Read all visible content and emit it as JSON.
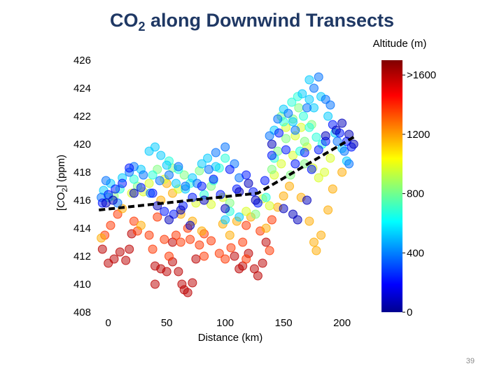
{
  "slide": {
    "title_main": "CO",
    "title_sub": "2",
    "title_rest": " along Downwind Transects",
    "page_number": "39"
  },
  "chart_data": {
    "type": "scatter",
    "title": "CO2 along Downwind Transects",
    "xlabel": "Distance (km)",
    "ylabel_parts": [
      "[CO",
      "2",
      "] (ppm)"
    ],
    "xlim": [
      -10,
      220
    ],
    "ylim": [
      408,
      426
    ],
    "xticks": [
      0,
      50,
      100,
      150,
      200
    ],
    "yticks": [
      408,
      410,
      412,
      414,
      416,
      418,
      420,
      422,
      424,
      426
    ],
    "colorbar": {
      "title": "Altitude (m)",
      "range": [
        0,
        1700
      ],
      "ticks": [
        {
          "value": 0,
          "label": "0"
        },
        {
          "value": 400,
          "label": "400"
        },
        {
          "value": 800,
          "label": "800"
        },
        {
          "value": 1200,
          "label": "1200"
        },
        {
          "value": 1600,
          "label": ">1600"
        }
      ],
      "colormap": "jet"
    },
    "trend_line": {
      "style": "dashed",
      "color": "#000000",
      "points": [
        [
          -8,
          415.3
        ],
        [
          128,
          416.5
        ],
        [
          212,
          420.6
        ]
      ]
    },
    "series": [
      {
        "name": "alt_low_1600",
        "altitude": 1600,
        "points": [
          [
            -5,
            412.5
          ],
          [
            0,
            411.5
          ],
          [
            5,
            411.8
          ],
          [
            10,
            412.3
          ],
          [
            15,
            411.7
          ],
          [
            18,
            412.5
          ],
          [
            20,
            413.6
          ],
          [
            40,
            411.3
          ],
          [
            45,
            411.1
          ],
          [
            50,
            410.9
          ],
          [
            55,
            411.6
          ],
          [
            60,
            410.9
          ],
          [
            63,
            410.0
          ],
          [
            65,
            409.6
          ],
          [
            68,
            409.4
          ],
          [
            72,
            410.1
          ],
          [
            75,
            411.8
          ],
          [
            108,
            412.0
          ],
          [
            112,
            411.1
          ],
          [
            115,
            411.3
          ],
          [
            120,
            412.2
          ],
          [
            125,
            411.1
          ],
          [
            128,
            410.6
          ],
          [
            132,
            411.5
          ],
          [
            135,
            413.0
          ],
          [
            55,
            413.0
          ],
          [
            40,
            410.0
          ]
        ]
      },
      {
        "name": "alt_1400",
        "altitude": 1400,
        "points": [
          [
            -3,
            413.5
          ],
          [
            2,
            414.2
          ],
          [
            8,
            415.0
          ],
          [
            22,
            414.5
          ],
          [
            25,
            413.8
          ],
          [
            35,
            413.5
          ],
          [
            38,
            412.5
          ],
          [
            42,
            414.8
          ],
          [
            48,
            413.2
          ],
          [
            52,
            412.0
          ],
          [
            58,
            413.5
          ],
          [
            62,
            413.0
          ],
          [
            68,
            414.0
          ],
          [
            70,
            413.2
          ],
          [
            78,
            412.8
          ],
          [
            82,
            412.0
          ],
          [
            88,
            413.1
          ],
          [
            95,
            412.2
          ],
          [
            100,
            411.8
          ],
          [
            105,
            412.6
          ],
          [
            115,
            413.0
          ],
          [
            118,
            414.2
          ],
          [
            130,
            413.8
          ],
          [
            138,
            412.4
          ],
          [
            140,
            414.6
          ],
          [
            82,
            413.6
          ],
          [
            118,
            411.8
          ]
        ]
      },
      {
        "name": "alt_1200",
        "altitude": 1200,
        "points": [
          [
            -6,
            413.3
          ],
          [
            12,
            415.4
          ],
          [
            28,
            414.2
          ],
          [
            45,
            416.0
          ],
          [
            50,
            417.2
          ],
          [
            55,
            416.5
          ],
          [
            62,
            415.0
          ],
          [
            72,
            414.5
          ],
          [
            80,
            413.8
          ],
          [
            98,
            414.3
          ],
          [
            104,
            413.5
          ],
          [
            110,
            414.5
          ],
          [
            122,
            414.8
          ],
          [
            135,
            414.0
          ],
          [
            145,
            415.5
          ],
          [
            150,
            416.3
          ],
          [
            155,
            417.0
          ],
          [
            165,
            416.2
          ],
          [
            172,
            414.5
          ],
          [
            178,
            412.4
          ],
          [
            182,
            413.5
          ],
          [
            188,
            415.3
          ],
          [
            192,
            416.8
          ],
          [
            200,
            418.0
          ],
          [
            176,
            413.0
          ]
        ]
      },
      {
        "name": "alt_1000",
        "altitude": 1000,
        "points": [
          [
            20,
            416.5
          ],
          [
            30,
            416.6
          ],
          [
            35,
            417.2
          ],
          [
            48,
            417.5
          ],
          [
            60,
            416.8
          ],
          [
            75,
            415.8
          ],
          [
            88,
            415.7
          ],
          [
            98,
            416.2
          ],
          [
            118,
            415.2
          ],
          [
            132,
            416.1
          ],
          [
            142,
            417.8
          ],
          [
            148,
            418.6
          ],
          [
            158,
            419.2
          ],
          [
            160,
            420.6
          ],
          [
            165,
            421.2
          ],
          [
            170,
            419.8
          ],
          [
            175,
            418.3
          ],
          [
            180,
            417.6
          ],
          [
            185,
            418.0
          ],
          [
            190,
            419.0
          ],
          [
            138,
            415.6
          ],
          [
            152,
            421.2
          ]
        ]
      },
      {
        "name": "alt_850",
        "altitude": 850,
        "points": [
          [
            5,
            416.3
          ],
          [
            25,
            417.0
          ],
          [
            42,
            418.2
          ],
          [
            55,
            418.3
          ],
          [
            65,
            417.8
          ],
          [
            78,
            418.1
          ],
          [
            88,
            417.0
          ],
          [
            104,
            415.8
          ],
          [
            126,
            415.0
          ],
          [
            140,
            418.2
          ],
          [
            145,
            419.5
          ],
          [
            152,
            420.4
          ],
          [
            158,
            421.8
          ],
          [
            163,
            422.6
          ],
          [
            168,
            420.2
          ],
          [
            174,
            421.4
          ],
          [
            148,
            422.0
          ],
          [
            156,
            417.8
          ],
          [
            168,
            418.6
          ]
        ]
      },
      {
        "name": "alt_700",
        "altitude": 700,
        "points": [
          [
            0,
            416.2
          ],
          [
            10,
            416.8
          ],
          [
            22,
            417.5
          ],
          [
            38,
            417.8
          ],
          [
            52,
            418.8
          ],
          [
            60,
            418.2
          ],
          [
            70,
            417.2
          ],
          [
            82,
            416.4
          ],
          [
            90,
            417.4
          ],
          [
            95,
            418.3
          ],
          [
            100,
            419.0
          ],
          [
            104,
            415.2
          ],
          [
            135,
            416.2
          ],
          [
            142,
            419.0
          ],
          [
            150,
            421.6
          ],
          [
            157,
            423.0
          ],
          [
            162,
            423.4
          ],
          [
            167,
            422.0
          ],
          [
            172,
            421.2
          ],
          [
            178,
            420.5
          ],
          [
            183,
            420.0
          ],
          [
            164,
            419.5
          ]
        ]
      },
      {
        "name": "alt_550",
        "altitude": 550,
        "points": [
          [
            -4,
            416.7
          ],
          [
            2,
            417.2
          ],
          [
            12,
            417.6
          ],
          [
            28,
            418.2
          ],
          [
            35,
            419.5
          ],
          [
            40,
            419.8
          ],
          [
            45,
            419.2
          ],
          [
            50,
            418.5
          ],
          [
            58,
            417.2
          ],
          [
            66,
            416.8
          ],
          [
            72,
            417.6
          ],
          [
            80,
            418.6
          ],
          [
            85,
            419.0
          ],
          [
            92,
            418.4
          ],
          [
            100,
            414.6
          ],
          [
            112,
            414.8
          ],
          [
            142,
            421.0
          ],
          [
            150,
            422.5
          ],
          [
            158,
            421.6
          ],
          [
            166,
            423.6
          ],
          [
            172,
            423.2
          ],
          [
            176,
            422.6
          ],
          [
            182,
            423.4
          ],
          [
            188,
            422.0
          ],
          [
            194,
            420.8
          ],
          [
            200,
            419.7
          ],
          [
            204,
            418.8
          ],
          [
            172,
            424.6
          ]
        ]
      },
      {
        "name": "alt_400",
        "altitude": 400,
        "points": [
          [
            -6,
            416.2
          ],
          [
            -2,
            417.4
          ],
          [
            8,
            415.8
          ],
          [
            18,
            418.0
          ],
          [
            22,
            418.4
          ],
          [
            30,
            417.8
          ],
          [
            36,
            416.5
          ],
          [
            44,
            417.4
          ],
          [
            52,
            417.8
          ],
          [
            60,
            418.4
          ],
          [
            66,
            417.0
          ],
          [
            76,
            417.2
          ],
          [
            86,
            418.2
          ],
          [
            92,
            419.4
          ],
          [
            100,
            419.8
          ],
          [
            108,
            418.6
          ],
          [
            112,
            417.6
          ],
          [
            138,
            420.6
          ],
          [
            145,
            421.8
          ],
          [
            154,
            422.2
          ],
          [
            160,
            421.0
          ],
          [
            170,
            422.6
          ],
          [
            176,
            424.0
          ],
          [
            180,
            424.8
          ],
          [
            186,
            423.2
          ],
          [
            190,
            422.8
          ],
          [
            196,
            420.2
          ],
          [
            202,
            419.5
          ],
          [
            206,
            418.6
          ]
        ]
      },
      {
        "name": "alt_250",
        "altitude": 250,
        "points": [
          [
            -5,
            415.8
          ],
          [
            0,
            416.4
          ],
          [
            6,
            416.8
          ],
          [
            12,
            417.2
          ],
          [
            18,
            418.3
          ],
          [
            28,
            416.9
          ],
          [
            38,
            416.5
          ],
          [
            48,
            415.2
          ],
          [
            56,
            415.0
          ],
          [
            64,
            415.6
          ],
          [
            72,
            416.2
          ],
          [
            80,
            417.0
          ],
          [
            90,
            417.5
          ],
          [
            96,
            416.4
          ],
          [
            104,
            418.2
          ],
          [
            110,
            416.8
          ],
          [
            118,
            417.8
          ],
          [
            124,
            416.6
          ],
          [
            128,
            415.8
          ],
          [
            134,
            417.4
          ],
          [
            140,
            419.2
          ],
          [
            146,
            420.8
          ],
          [
            152,
            419.6
          ],
          [
            160,
            418.6
          ],
          [
            168,
            419.4
          ],
          [
            174,
            418.2
          ],
          [
            180,
            419.6
          ],
          [
            186,
            420.2
          ],
          [
            192,
            421.4
          ],
          [
            198,
            420.8
          ],
          [
            204,
            420.2
          ],
          [
            208,
            419.8
          ]
        ]
      },
      {
        "name": "alt_100",
        "altitude": 100,
        "points": [
          [
            -2,
            415.8
          ],
          [
            4,
            416.0
          ],
          [
            22,
            416.5
          ],
          [
            42,
            415.6
          ],
          [
            52,
            414.6
          ],
          [
            62,
            415.3
          ],
          [
            70,
            414.2
          ],
          [
            82,
            416.0
          ],
          [
            100,
            415.4
          ],
          [
            112,
            416.6
          ],
          [
            120,
            417.2
          ],
          [
            126,
            416.0
          ],
          [
            140,
            420.0
          ],
          [
            150,
            415.4
          ],
          [
            158,
            415.0
          ],
          [
            162,
            414.6
          ],
          [
            170,
            416.0
          ],
          [
            186,
            420.6
          ],
          [
            195,
            421.0
          ],
          [
            200,
            421.5
          ],
          [
            206,
            420.7
          ],
          [
            210,
            420.0
          ]
        ]
      }
    ]
  }
}
